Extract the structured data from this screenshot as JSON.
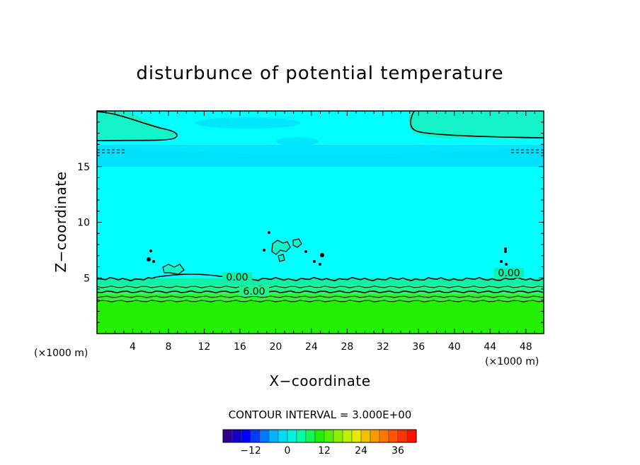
{
  "chart_data": {
    "type": "heatmap",
    "title": "disturbunce of potential temperature",
    "xlabel": "X−coordinate",
    "ylabel": "Z−coordinate",
    "x_unit": "(×1000 m)",
    "z_unit": "(×1000 m)",
    "xlim": [
      0,
      50
    ],
    "ylim": [
      0,
      20
    ],
    "x_ticks": [
      4,
      8,
      12,
      16,
      20,
      24,
      28,
      32,
      36,
      40,
      44,
      48
    ],
    "y_ticks": [
      5,
      10,
      15
    ],
    "contour_interval_text": "CONTOUR INTERVAL = 3.000E+00",
    "contour_labels": [
      "0.00",
      "6.00",
      "0.00"
    ],
    "colorbar": {
      "ticks": [
        "−12",
        "0",
        "12",
        "24",
        "36"
      ],
      "min": -21,
      "max": 42,
      "step": 3
    },
    "layers": [
      {
        "z_bottom": 0.0,
        "z_top": 3.0,
        "value": 9,
        "color": "#22f000"
      },
      {
        "z_bottom": 3.0,
        "z_top": 3.6,
        "value": 6,
        "color": "#2df52a"
      },
      {
        "z_bottom": 3.6,
        "z_top": 4.3,
        "value": 4.5,
        "color": "#1ff58a"
      },
      {
        "z_bottom": 4.3,
        "z_top": 5.0,
        "value": 3,
        "color": "#0ff0a8"
      },
      {
        "z_bottom": 5.0,
        "z_top": 15.0,
        "value": 0,
        "color": "#00ffff"
      },
      {
        "z_bottom": 15.0,
        "z_top": 17.0,
        "value": -1,
        "color": "#00e6ff"
      },
      {
        "z_bottom": 17.0,
        "z_top": 20.0,
        "value": 0,
        "color": "#00ffff"
      }
    ]
  }
}
